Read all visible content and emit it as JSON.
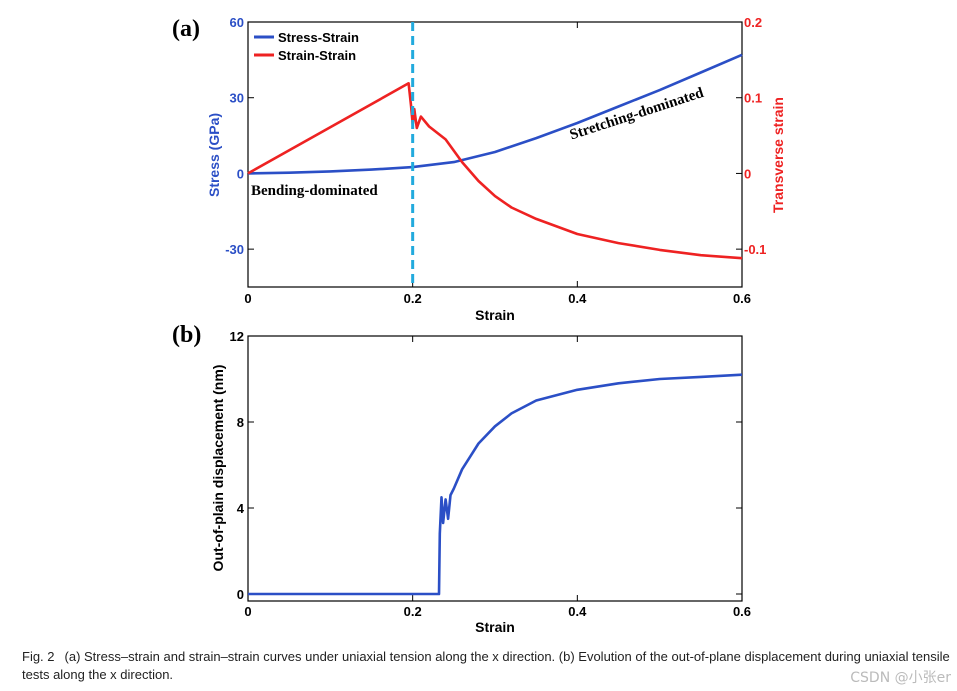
{
  "chart_data": [
    {
      "panel": "(a)",
      "type": "line",
      "xlabel": "Strain",
      "ylabel": "Stress (GPa)",
      "ylabel_right": "Transverse strain",
      "xlim": [
        0,
        0.6
      ],
      "ylim": [
        -45,
        60
      ],
      "ylim_right": [
        -0.15,
        0.2
      ],
      "xticks": [
        0,
        0.2,
        0.4,
        0.6
      ],
      "xtick_labels": [
        "0",
        "0.2",
        "0.4",
        "0.6"
      ],
      "yticks": [
        -30,
        0,
        30,
        60
      ],
      "ytick_labels": [
        "-30",
        "0",
        "30",
        "60"
      ],
      "yticks_right": [
        -0.1,
        0,
        0.1,
        0.2
      ],
      "ytick_labels_right": [
        "-0.1",
        "0",
        "0.1",
        "0.2"
      ],
      "vline_x": 0.2,
      "legend_position": "top-left",
      "series": [
        {
          "name": "Stress-Strain",
          "axis": "left",
          "color": "#2b4fc6",
          "x": [
            0,
            0.05,
            0.1,
            0.15,
            0.2,
            0.25,
            0.3,
            0.35,
            0.4,
            0.45,
            0.5,
            0.55,
            0.6
          ],
          "y": [
            0,
            0.3,
            0.8,
            1.5,
            2.5,
            4.5,
            8.5,
            14,
            20,
            26.5,
            33,
            40,
            47
          ]
        },
        {
          "name": "Strain-Strain",
          "axis": "right",
          "color": "#ee2222",
          "x": [
            0,
            0.195,
            0.198,
            0.2,
            0.202,
            0.205,
            0.21,
            0.22,
            0.24,
            0.26,
            0.28,
            0.3,
            0.32,
            0.35,
            0.4,
            0.45,
            0.5,
            0.55,
            0.6
          ],
          "y": [
            0,
            0.119,
            0.09,
            0.065,
            0.085,
            0.06,
            0.075,
            0.062,
            0.045,
            0.015,
            -0.01,
            -0.03,
            -0.045,
            -0.06,
            -0.08,
            -0.092,
            -0.101,
            -0.108,
            -0.112
          ]
        }
      ],
      "annotations": [
        "Bending-dominated",
        "Stretching-dominated"
      ]
    },
    {
      "panel": "(b)",
      "type": "line",
      "xlabel": "Strain",
      "ylabel": "Out-of-plain displacement (nm)",
      "xlim": [
        0,
        0.6
      ],
      "ylim": [
        0,
        12
      ],
      "xticks": [
        0,
        0.2,
        0.4,
        0.6
      ],
      "xtick_labels": [
        "0",
        "0.2",
        "0.4",
        "0.6"
      ],
      "yticks": [
        0,
        4,
        8,
        12
      ],
      "ytick_labels": [
        "0",
        "4",
        "8",
        "12"
      ],
      "series": [
        {
          "name": "Out-of-plane displacement",
          "color": "#2b4fc6",
          "x": [
            0,
            0.232,
            0.233,
            0.235,
            0.237,
            0.24,
            0.243,
            0.246,
            0.25,
            0.26,
            0.27,
            0.28,
            0.3,
            0.32,
            0.35,
            0.4,
            0.45,
            0.5,
            0.55,
            0.6
          ],
          "y": [
            0,
            0,
            2.8,
            4.5,
            3.3,
            4.4,
            3.5,
            4.6,
            4.9,
            5.8,
            6.4,
            7.0,
            7.8,
            8.4,
            9.0,
            9.5,
            9.8,
            10.0,
            10.1,
            10.2
          ]
        }
      ]
    }
  ],
  "caption": {
    "fig_no": "Fig. 2",
    "text": "(a) Stress–strain and strain–strain curves under uniaxial tension along the x direction. (b) Evolution of the out-of-plane displacement during uniaxial tensile tests along the x direction."
  },
  "watermark": "CSDN @小张er",
  "colors": {
    "blue": "#2b4fc6",
    "red": "#ee2222",
    "dashed": "#22aadd"
  }
}
